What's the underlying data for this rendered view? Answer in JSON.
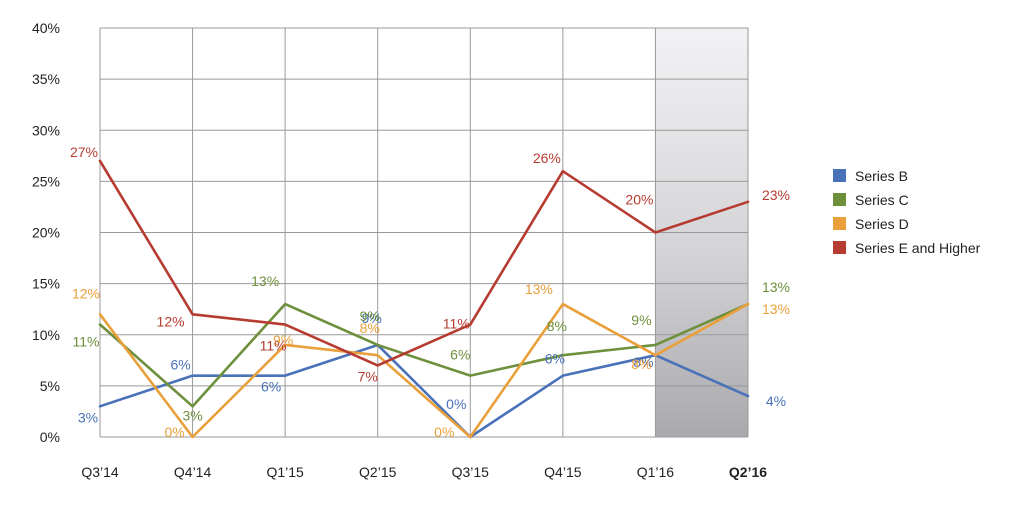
{
  "chart_data": {
    "type": "line",
    "categories": [
      "Q3’14",
      "Q4’14",
      "Q1’15",
      "Q2’15",
      "Q3’15",
      "Q4’15",
      "Q1’16",
      "Q2’16"
    ],
    "highlighted_category": "Q2’16",
    "ylim": [
      0,
      40
    ],
    "yticks": [
      "0%",
      "5%",
      "10%",
      "15%",
      "20%",
      "25%",
      "30%",
      "35%",
      "40%"
    ],
    "ytick_values": [
      0,
      5,
      10,
      15,
      20,
      25,
      30,
      35,
      40
    ],
    "grid": true,
    "legend_position": "right",
    "series": [
      {
        "name": "Series B",
        "color": "#4a72b8",
        "values": [
          3,
          6,
          6,
          9,
          0,
          6,
          8,
          4
        ],
        "labels": [
          "3%",
          "6%",
          "6%",
          "9%",
          "0%",
          "6%",
          "8%",
          "4%"
        ]
      },
      {
        "name": "Series C",
        "color": "#6e8f3c",
        "values": [
          11,
          3,
          13,
          9,
          6,
          8,
          9,
          13
        ],
        "labels": [
          "11%",
          "3%",
          "13%",
          "9%",
          "6%",
          "8%",
          "9%",
          "13%"
        ]
      },
      {
        "name": "Series D",
        "color": "#e9a03b",
        "values": [
          12,
          0,
          9,
          8,
          0,
          13,
          8,
          13
        ],
        "labels": [
          "12%",
          "0%",
          "9%",
          "8%",
          "0%",
          "13%",
          "8%",
          "13%"
        ]
      },
      {
        "name": "Series E and Higher",
        "color": "#b63c32",
        "values": [
          27,
          12,
          11,
          7,
          11,
          26,
          20,
          23
        ],
        "labels": [
          "27%",
          "12%",
          "11%",
          "7%",
          "11%",
          "26%",
          "20%",
          "23%"
        ]
      }
    ]
  }
}
